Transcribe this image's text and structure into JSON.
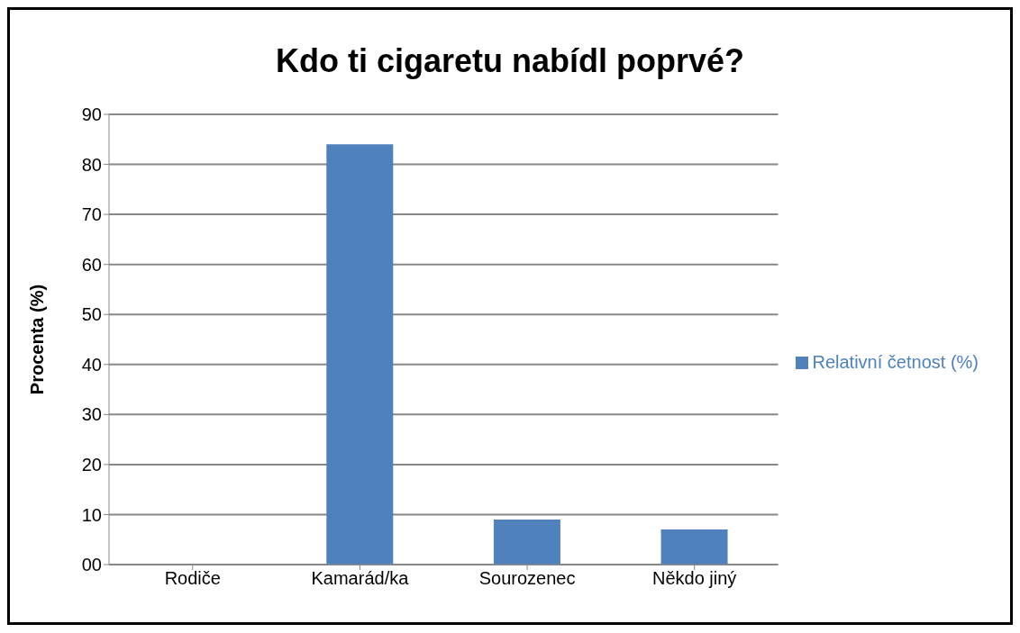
{
  "chart_data": {
    "type": "bar",
    "title": "Kdo ti cigaretu nabídl poprvé?",
    "ylabel": "Procenta (%)",
    "categories": [
      "Rodiče",
      "Kamarád/ka",
      "Sourozenec",
      "Někdo jiný"
    ],
    "series": [
      {
        "name": "Relativní četnost (%)",
        "color": "#4f81bd",
        "values": [
          0,
          84,
          9,
          7
        ]
      }
    ],
    "ylim": [
      0,
      90
    ],
    "yticks": [
      {
        "value": 0,
        "label": "00"
      },
      10,
      20,
      30,
      40,
      50,
      60,
      70,
      80,
      90
    ],
    "grid": "y",
    "legend": "right"
  }
}
